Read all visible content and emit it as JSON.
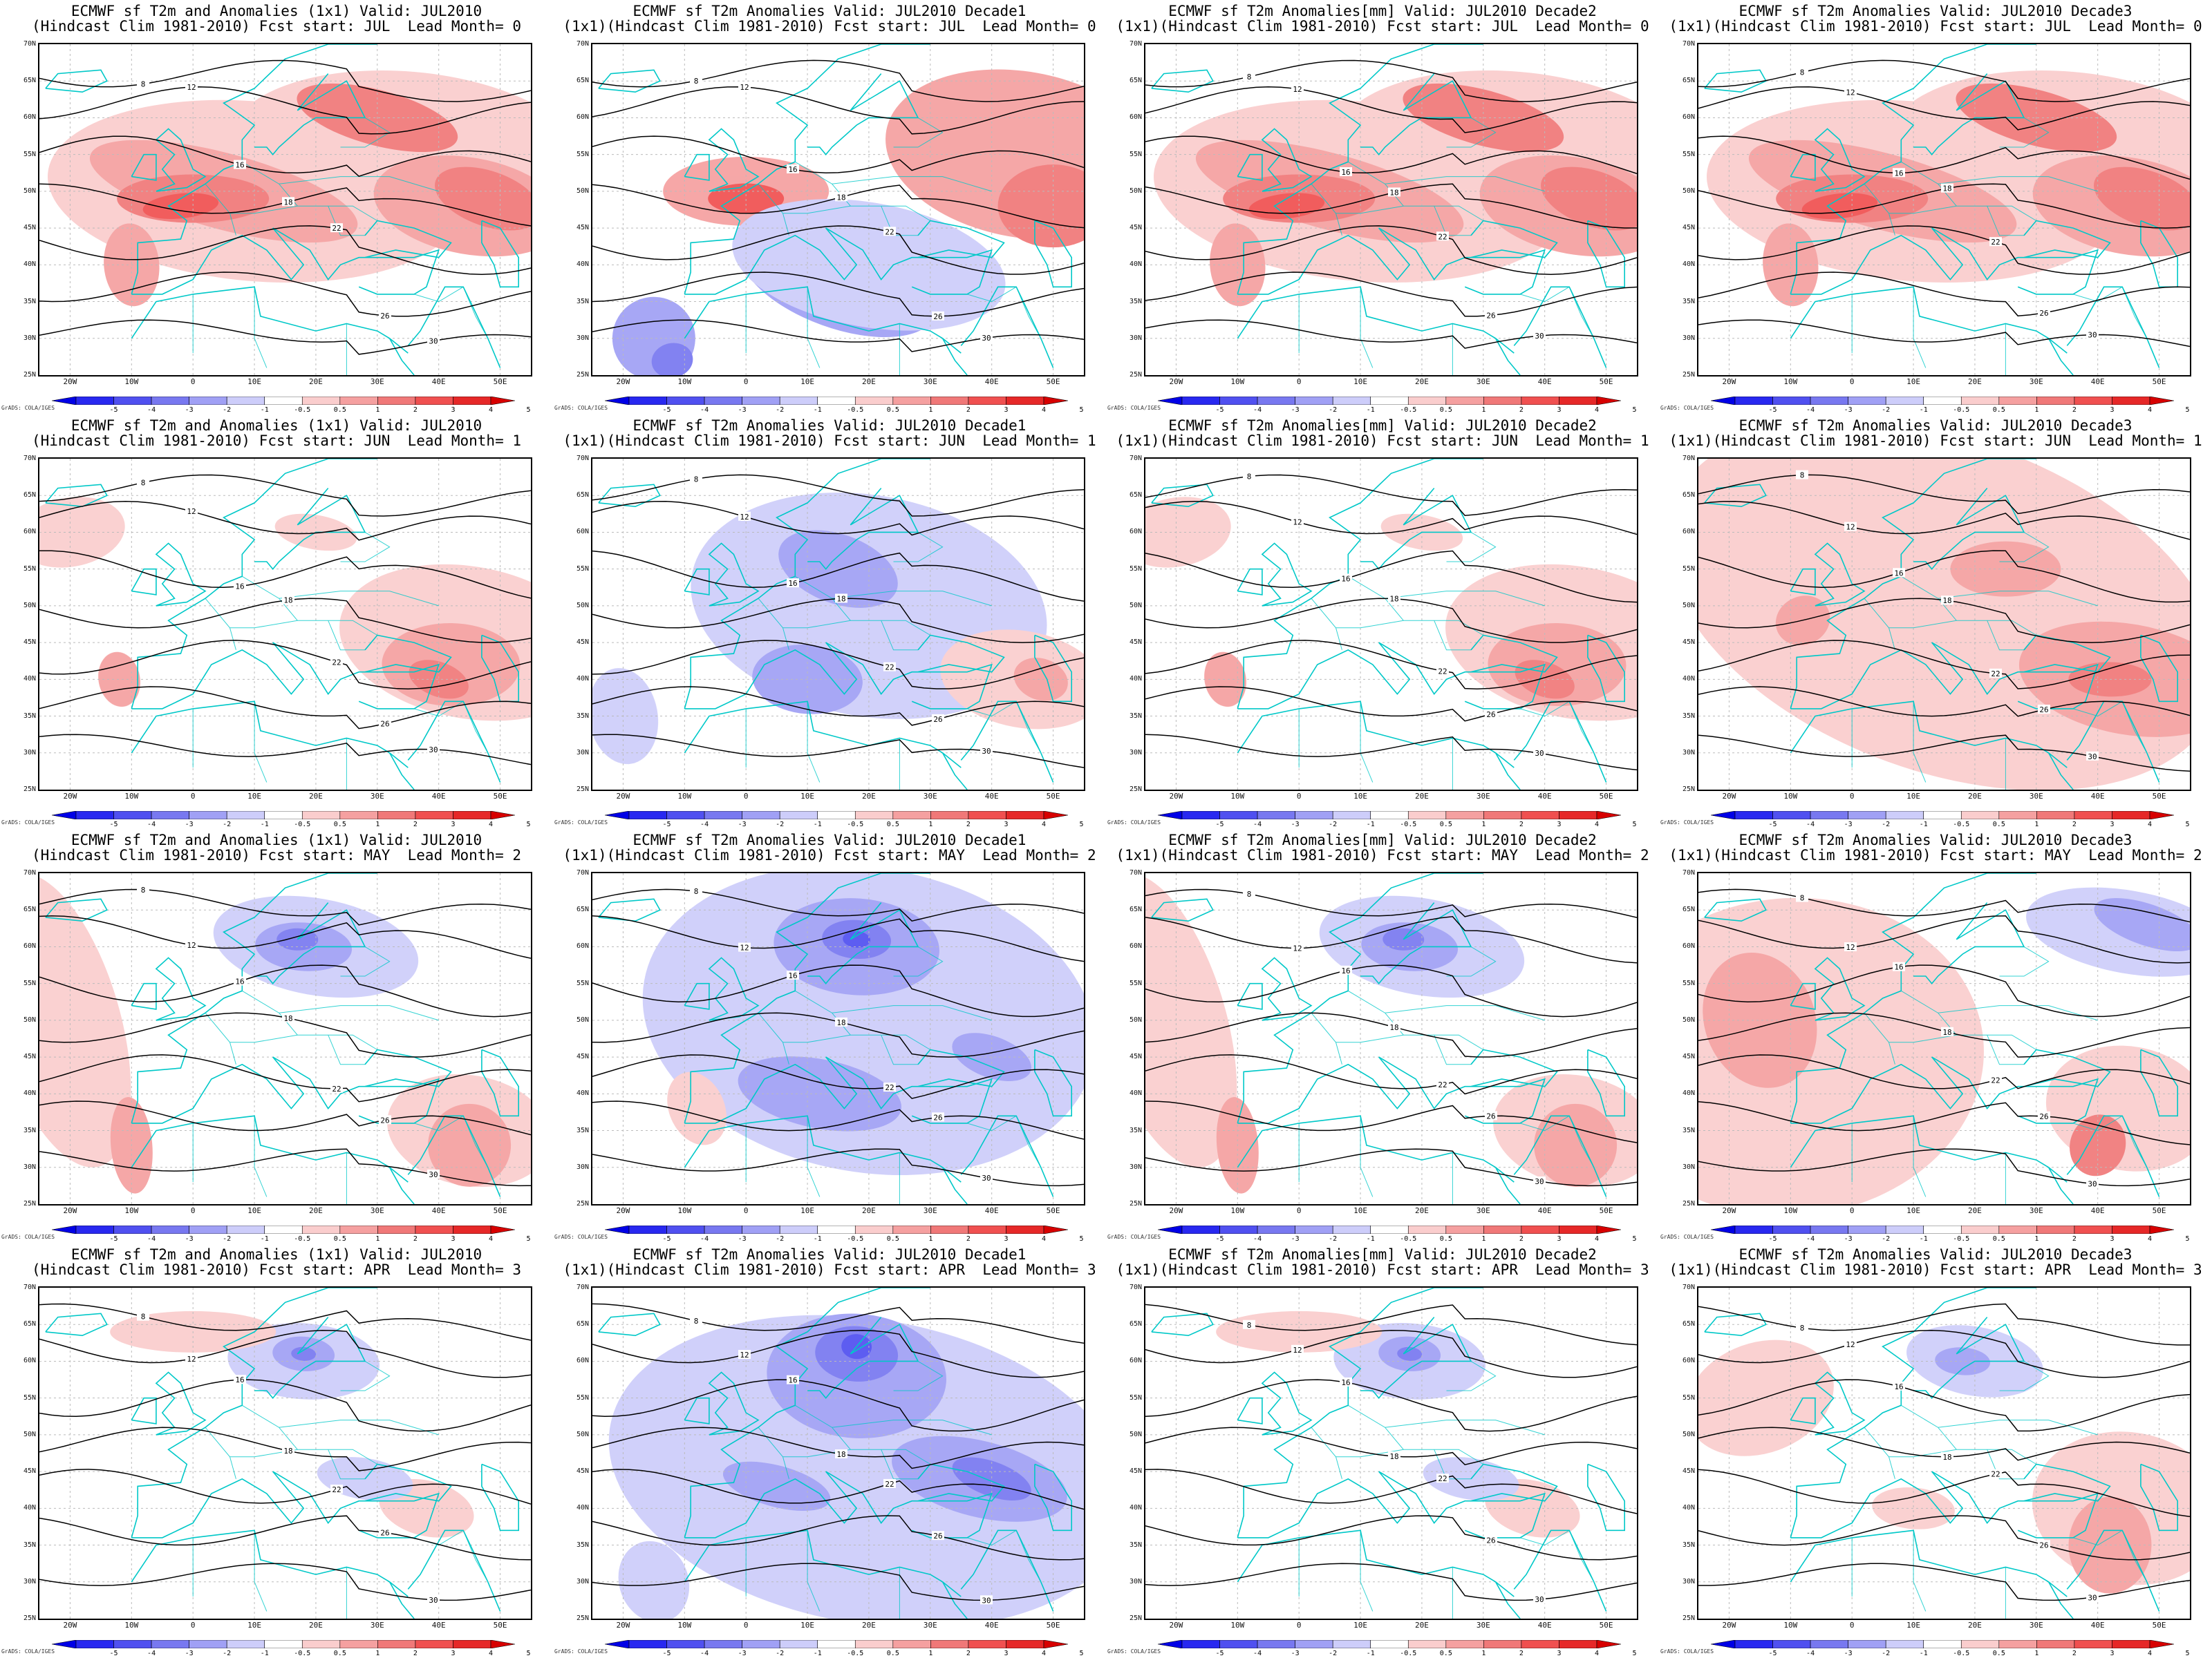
{
  "panels": [
    {
      "title1": "ECMWF sf T2m and Anomalies (1x1) Valid: JUL2010",
      "title2": "(Hindcast Clim 1981-2010) Fcst start: JUL  Lead Month= 0",
      "pattern": "warm-strong"
    },
    {
      "title1": "ECMWF sf T2m Anomalies Valid: JUL2010 Decade1",
      "title2": "(1x1)(Hindcast Clim 1981-2010) Fcst start: JUL  Lead Month= 0",
      "pattern": "warm-north-cool-south"
    },
    {
      "title1": "ECMWF sf T2m Anomalies[mm] Valid: JUL2010 Decade2",
      "title2": "(1x1)(Hindcast Clim 1981-2010) Fcst start: JUL  Lead Month= 0",
      "pattern": "warm-strong"
    },
    {
      "title1": "ECMWF sf T2m Anomalies Valid: JUL2010 Decade3",
      "title2": "(1x1)(Hindcast Clim 1981-2010) Fcst start: JUL  Lead Month= 0",
      "pattern": "warm-strong"
    },
    {
      "title1": "ECMWF sf T2m and Anomalies (1x1) Valid: JUL2010",
      "title2": "(Hindcast Clim 1981-2010) Fcst start: JUN  Lead Month= 1",
      "pattern": "warm-east"
    },
    {
      "title1": "ECMWF sf T2m Anomalies Valid: JUL2010 Decade1",
      "title2": "(1x1)(Hindcast Clim 1981-2010) Fcst start: JUN  Lead Month= 1",
      "pattern": "cool-center"
    },
    {
      "title1": "ECMWF sf T2m Anomalies[mm] Valid: JUL2010 Decade2",
      "title2": "(1x1)(Hindcast Clim 1981-2010) Fcst start: JUN  Lead Month= 1",
      "pattern": "warm-east"
    },
    {
      "title1": "ECMWF sf T2m Anomalies Valid: JUL2010 Decade3",
      "title2": "(1x1)(Hindcast Clim 1981-2010) Fcst start: JUN  Lead Month= 1",
      "pattern": "warm-wide"
    },
    {
      "title1": "ECMWF sf T2m and Anomalies (1x1) Valid: JUL2010",
      "title2": "(Hindcast Clim 1981-2010) Fcst start: MAY  Lead Month= 2",
      "pattern": "mixed-west-warm"
    },
    {
      "title1": "ECMWF sf T2m Anomalies Valid: JUL2010 Decade1",
      "title2": "(1x1)(Hindcast Clim 1981-2010) Fcst start: MAY  Lead Month= 2",
      "pattern": "cool-wide"
    },
    {
      "title1": "ECMWF sf T2m Anomalies[mm] Valid: JUL2010 Decade2",
      "title2": "(1x1)(Hindcast Clim 1981-2010) Fcst start: MAY  Lead Month= 2",
      "pattern": "mixed-west-warm"
    },
    {
      "title1": "ECMWF sf T2m Anomalies Valid: JUL2010 Decade3",
      "title2": "(1x1)(Hindcast Clim 1981-2010) Fcst start: MAY  Lead Month= 2",
      "pattern": "warm-west-cool-ne"
    },
    {
      "title1": "ECMWF sf T2m and Anomalies (1x1) Valid: JUL2010",
      "title2": "(Hindcast Clim 1981-2010) Fcst start: APR  Lead Month= 3",
      "pattern": "mixed-light"
    },
    {
      "title1": "ECMWF sf T2m Anomalies Valid: JUL2010 Decade1",
      "title2": "(1x1)(Hindcast Clim 1981-2010) Fcst start: APR  Lead Month= 3",
      "pattern": "cool-strong"
    },
    {
      "title1": "ECMWF sf T2m Anomalies[mm] Valid: JUL2010 Decade2",
      "title2": "(1x1)(Hindcast Clim 1981-2010) Fcst start: APR  Lead Month= 3",
      "pattern": "mixed-light"
    },
    {
      "title1": "ECMWF sf T2m Anomalies Valid: JUL2010 Decade3",
      "title2": "(1x1)(Hindcast Clim 1981-2010) Fcst start: APR  Lead Month= 3",
      "pattern": "warm-light"
    }
  ],
  "lat_labels": [
    "70N",
    "65N",
    "60N",
    "55N",
    "50N",
    "45N",
    "40N",
    "35N",
    "30N",
    "25N"
  ],
  "lon_labels": [
    "20W",
    "10W",
    "0",
    "10E",
    "20E",
    "30E",
    "40E",
    "50E"
  ],
  "colorbar": {
    "labels": [
      "-5",
      "-4",
      "-3",
      "-2",
      "-1",
      "-0.5",
      "0.5",
      "1",
      "2",
      "3",
      "4",
      "5"
    ],
    "colors": [
      "#0000e6",
      "#2828f0",
      "#5050f0",
      "#7878f0",
      "#a0a0f5",
      "#cdcdfa",
      "#ffffff",
      "#facdcd",
      "#f5a0a0",
      "#f07878",
      "#f05050",
      "#e62828",
      "#d70000"
    ]
  },
  "contour_labels": [
    "8",
    "12",
    "16",
    "18",
    "22",
    "26",
    "30"
  ],
  "credit": "GrADS: COLA/IGES",
  "colors": {
    "coast": "#00c8c8",
    "contour": "#000000",
    "grid": "#bbbbbb"
  }
}
